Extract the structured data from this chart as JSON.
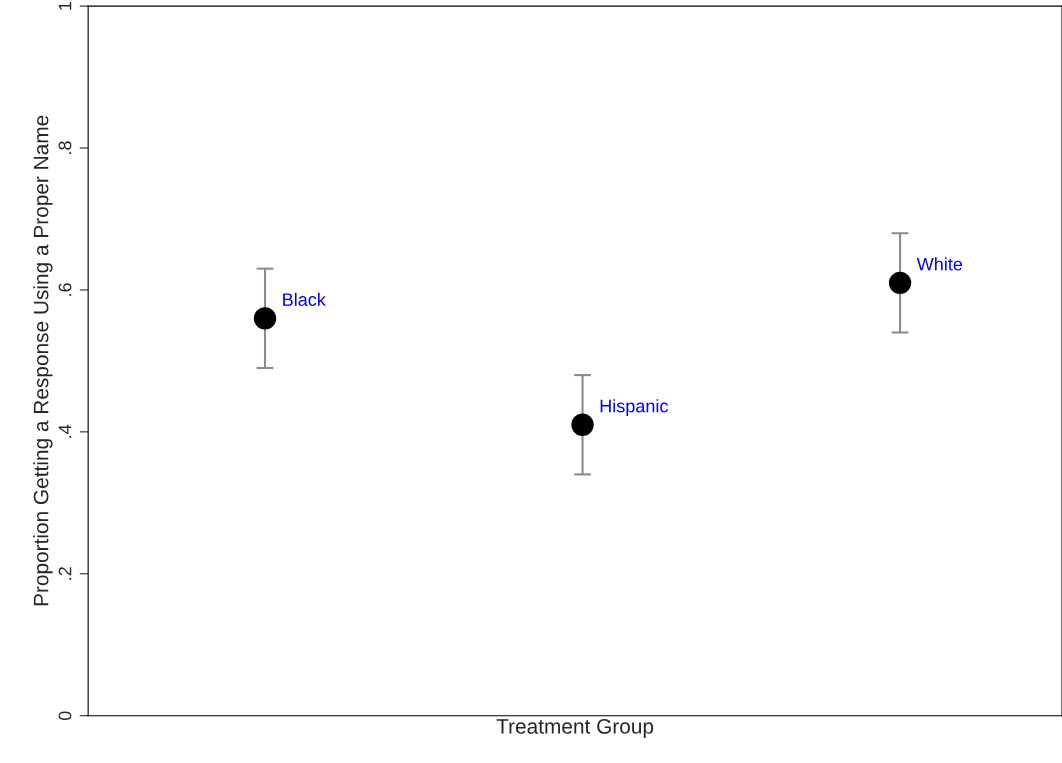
{
  "chart_data": {
    "type": "scatter",
    "xlabel": "Treatment Group",
    "ylabel": "Proportion Getting a Response Using a Proper Name",
    "categories": [
      "Black",
      "Hispanic",
      "White"
    ],
    "series": [
      {
        "color": "#000000",
        "values": [
          0.56,
          0.41,
          0.61
        ],
        "errors": [
          [
            0.49,
            0.63
          ],
          [
            0.34,
            0.48
          ],
          [
            0.54,
            0.68
          ]
        ]
      }
    ],
    "ylim": [
      0,
      1
    ],
    "yticks": [
      0,
      {
        "value": 0.2,
        "label": ".2"
      },
      {
        "value": 0.4,
        "label": ".4"
      },
      {
        "value": 0.6,
        "label": ".6"
      },
      {
        "value": 0.8,
        "label": ".8"
      },
      1
    ],
    "tick_labels": "y",
    "marker": "circle",
    "grid": false,
    "legend": false
  }
}
